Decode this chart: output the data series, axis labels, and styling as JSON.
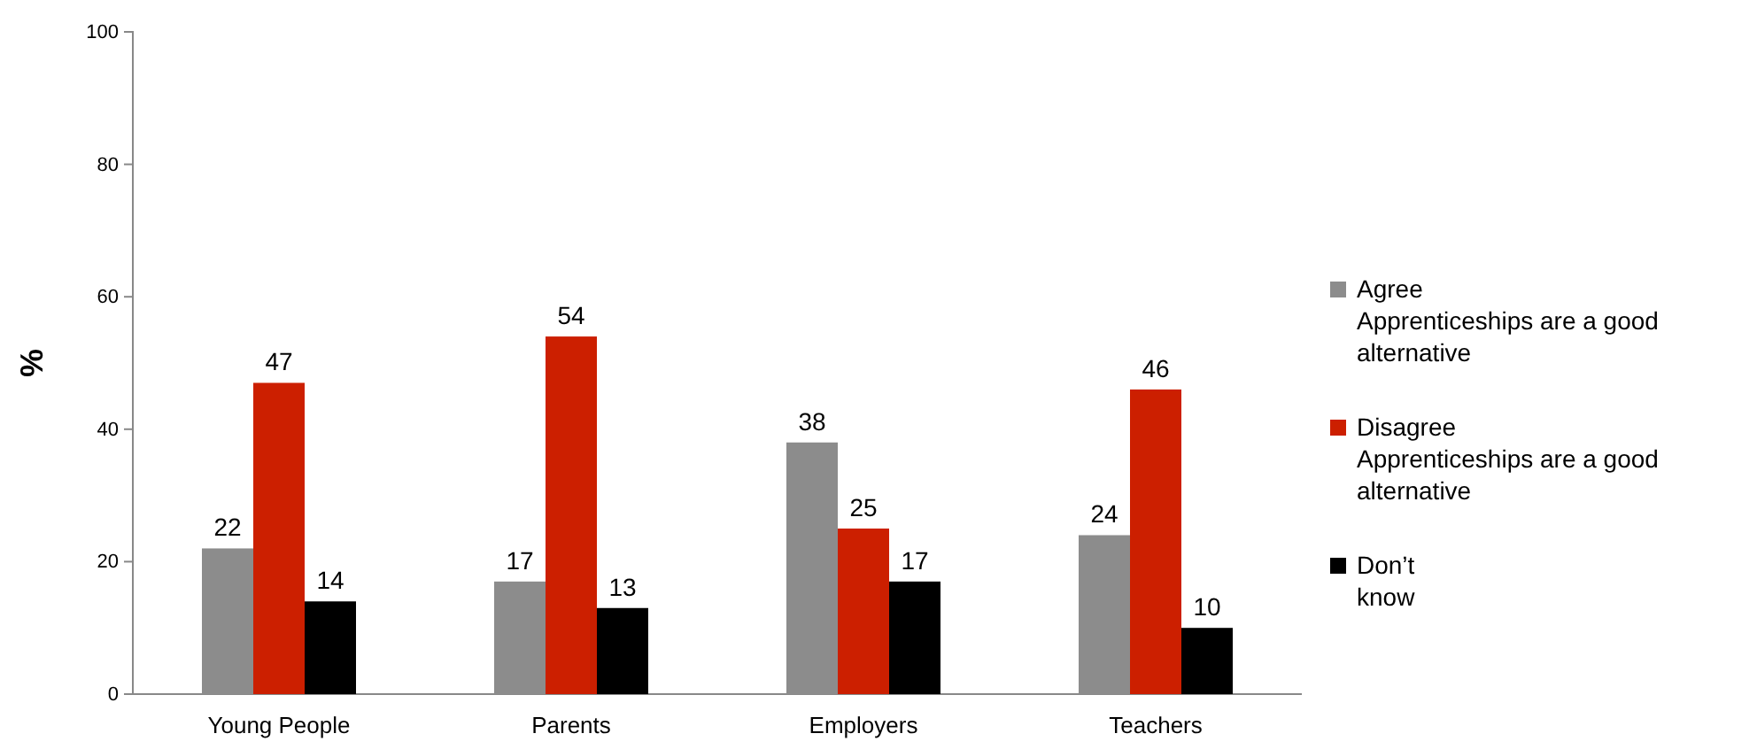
{
  "chart_data": {
    "type": "bar",
    "ylabel": "%",
    "categories": [
      "Young People",
      "Parents",
      "Employers",
      "Teachers"
    ],
    "series": [
      {
        "name": "Agree Apprenticeships are a good alternative",
        "color": "#8c8c8c",
        "values": [
          22,
          17,
          38,
          24
        ]
      },
      {
        "name": "Disagree Apprenticeships are a good alternative",
        "color": "#cc1f00",
        "values": [
          47,
          54,
          25,
          46
        ]
      },
      {
        "name": "Don’t know",
        "color": "#000000",
        "values": [
          14,
          13,
          17,
          10
        ]
      }
    ],
    "ylim": [
      0,
      100
    ],
    "yticks": [
      0,
      20,
      40,
      60,
      80,
      100
    ],
    "data_labels": true,
    "grid": false,
    "legend": "right"
  }
}
